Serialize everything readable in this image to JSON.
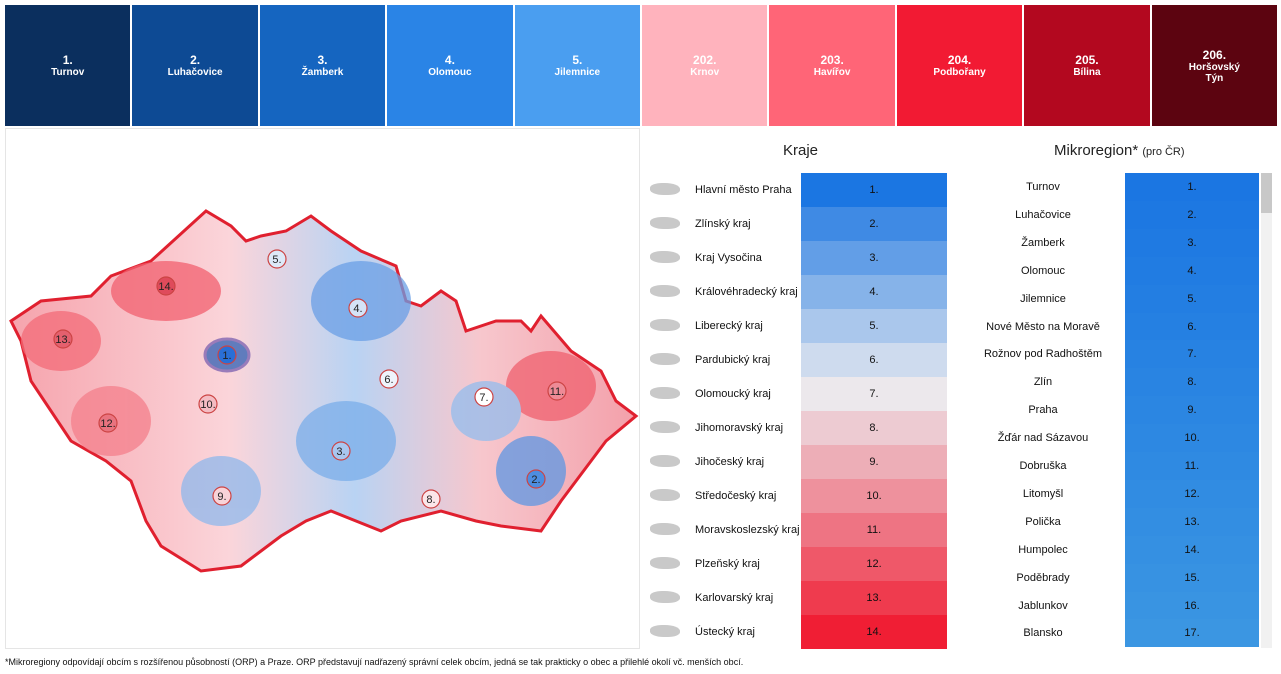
{
  "top_ranking": [
    {
      "rank": "1.",
      "name": "Turnov",
      "color": "#0b2f5e"
    },
    {
      "rank": "2.",
      "name": "Luhačovice",
      "color": "#0d4a94"
    },
    {
      "rank": "3.",
      "name": "Žamberk",
      "color": "#1565c0"
    },
    {
      "rank": "4.",
      "name": "Olomouc",
      "color": "#2a84e6"
    },
    {
      "rank": "5.",
      "name": "Jilemnice",
      "color": "#4a9ef0"
    },
    {
      "rank": "202.",
      "name": "Krnov",
      "color": "#ffb3bd"
    },
    {
      "rank": "203.",
      "name": "Havířov",
      "color": "#ff6577"
    },
    {
      "rank": "204.",
      "name": "Podbořany",
      "color": "#f21a33"
    },
    {
      "rank": "205.",
      "name": "Bílina",
      "color": "#b3081f"
    },
    {
      "rank": "206.",
      "name": "Horšovský Týn",
      "color": "#5c0410"
    }
  ],
  "map": {
    "markers": [
      "1.",
      "2.",
      "3.",
      "4.",
      "5.",
      "6.",
      "7.",
      "8.",
      "9.",
      "10.",
      "11.",
      "12.",
      "13.",
      "14."
    ]
  },
  "kraje": {
    "title": "Kraje",
    "rows": [
      {
        "name": "Hlavní město Praha",
        "rank": "1."
      },
      {
        "name": "Zlínský kraj",
        "rank": "2."
      },
      {
        "name": "Kraj Vysočina",
        "rank": "3."
      },
      {
        "name": "Královéhradecký kraj",
        "rank": "4."
      },
      {
        "name": "Liberecký kraj",
        "rank": "5."
      },
      {
        "name": "Pardubický kraj",
        "rank": "6."
      },
      {
        "name": "Olomoucký kraj",
        "rank": "7."
      },
      {
        "name": "Jihomoravský kraj",
        "rank": "8."
      },
      {
        "name": "Jihočeský kraj",
        "rank": "9."
      },
      {
        "name": "Středočeský kraj",
        "rank": "10."
      },
      {
        "name": "Moravskoslezský kraj",
        "rank": "11."
      },
      {
        "name": "Plzeňský kraj",
        "rank": "12."
      },
      {
        "name": "Karlovarský kraj",
        "rank": "13."
      },
      {
        "name": "Ústecký kraj",
        "rank": "14."
      }
    ]
  },
  "mikroregion": {
    "title": "Mikroregion*",
    "subtitle": "(pro ČR)",
    "rows": [
      {
        "name": "Turnov",
        "rank": "1."
      },
      {
        "name": "Luhačovice",
        "rank": "2."
      },
      {
        "name": "Žamberk",
        "rank": "3."
      },
      {
        "name": "Olomouc",
        "rank": "4."
      },
      {
        "name": "Jilemnice",
        "rank": "5."
      },
      {
        "name": "Nové Město na Moravě",
        "rank": "6."
      },
      {
        "name": "Rožnov pod Radhoštěm",
        "rank": "7."
      },
      {
        "name": "Zlín",
        "rank": "8."
      },
      {
        "name": "Praha",
        "rank": "9."
      },
      {
        "name": "Žďár nad Sázavou",
        "rank": "10."
      },
      {
        "name": "Dobruška",
        "rank": "11."
      },
      {
        "name": "Litomyšl",
        "rank": "12."
      },
      {
        "name": "Polička",
        "rank": "13."
      },
      {
        "name": "Humpolec",
        "rank": "14."
      },
      {
        "name": "Poděbrady",
        "rank": "15."
      },
      {
        "name": "Jablunkov",
        "rank": "16."
      },
      {
        "name": "Blansko",
        "rank": "17."
      }
    ]
  },
  "footnote": "*Mikroregiony odpovídají obcím s rozšířenou působností (ORP) a Praze. ORP představují nadřazený správní celek obcím, jedná se tak prakticky o obec a přilehlé okolí vč. menších obcí."
}
